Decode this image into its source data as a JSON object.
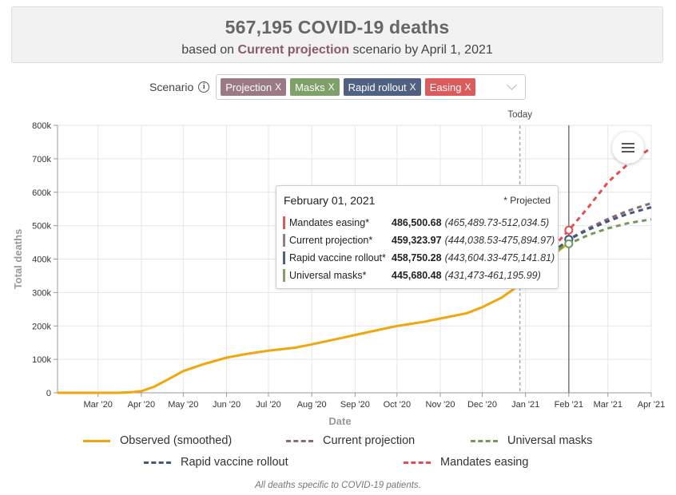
{
  "header": {
    "title": "567,195 COVID-19 deaths",
    "sub_prefix": "based on",
    "sub_highlight": "Current projection",
    "sub_suffix": "scenario by April 1, 2021"
  },
  "scenario": {
    "label": "Scenario",
    "info_glyph": "i",
    "chips": [
      {
        "label": "Projection",
        "class": "proj",
        "color": "#9a7a84"
      },
      {
        "label": "Masks",
        "class": "masks",
        "color": "#7fa068"
      },
      {
        "label": "Rapid rollout",
        "class": "rapid",
        "color": "#4f6082"
      },
      {
        "label": "Easing",
        "class": "easing",
        "color": "#dc5a5a"
      }
    ],
    "chip_close": "X"
  },
  "tooltip": {
    "date": "February 01, 2021",
    "projected_note": "* Projected",
    "rows": [
      {
        "name": "Mandates easing*",
        "value": "486,500.68",
        "ci": "(465,489.73-512,034.5)",
        "color": "#dc5a5a"
      },
      {
        "name": "Current projection*",
        "value": "459,323.97",
        "ci": "(444,038.53-475,894.97)",
        "color": "#9a7a84"
      },
      {
        "name": "Rapid vaccine rollout*",
        "value": "458,750.28",
        "ci": "(443,604.33-475,141.81)",
        "color": "#4f6082"
      },
      {
        "name": "Universal masks*",
        "value": "445,680.48",
        "ci": "(431,473-461,195.99)",
        "color": "#7fa068"
      }
    ]
  },
  "legend": {
    "observed": "Observed (smoothed)",
    "projection": "Current projection",
    "masks": "Universal masks",
    "rapid": "Rapid vaccine rollout",
    "easing": "Mandates easing"
  },
  "footnote": "All deaths specific to COVID-19 patients.",
  "chart_data": {
    "type": "line",
    "xlabel": "Date",
    "ylabel": "Total deaths",
    "x_ticks": [
      "Mar '20",
      "Apr '20",
      "May '20",
      "Jun '20",
      "Jul '20",
      "Aug '20",
      "Sep '20",
      "Oct '20",
      "Nov '20",
      "Dec '20",
      "Jan '21",
      "Feb '21",
      "Mar '21",
      "Apr '21"
    ],
    "y_ticks": [
      "0",
      "100k",
      "200k",
      "300k",
      "400k",
      "500k",
      "600k",
      "700k",
      "800k"
    ],
    "ylim": [
      0,
      800000
    ],
    "xlim": [
      "2020-02-01",
      "2021-04-01"
    ],
    "today_label": "Today",
    "today_date": "2020-12-28",
    "hover_date": "2021-02-01",
    "grid": true,
    "colors": {
      "observed": "#f2a60d",
      "projection": "#8a6a76",
      "masks": "#6f9a5a",
      "rapid": "#46567c",
      "easing": "#e05050"
    },
    "series": [
      {
        "name": "Observed (smoothed)",
        "key": "observed",
        "points": [
          [
            "2020-02-01",
            0
          ],
          [
            "2020-03-15",
            0
          ],
          [
            "2020-03-25",
            2000
          ],
          [
            "2020-04-01",
            5000
          ],
          [
            "2020-04-10",
            18000
          ],
          [
            "2020-04-20",
            40000
          ],
          [
            "2020-05-01",
            65000
          ],
          [
            "2020-05-15",
            85000
          ],
          [
            "2020-06-01",
            105000
          ],
          [
            "2020-06-15",
            116000
          ],
          [
            "2020-07-01",
            126000
          ],
          [
            "2020-07-20",
            135000
          ],
          [
            "2020-08-01",
            145000
          ],
          [
            "2020-08-20",
            162000
          ],
          [
            "2020-09-01",
            173000
          ],
          [
            "2020-09-20",
            190000
          ],
          [
            "2020-10-01",
            200000
          ],
          [
            "2020-10-20",
            212000
          ],
          [
            "2020-11-01",
            222000
          ],
          [
            "2020-11-20",
            238000
          ],
          [
            "2020-12-01",
            256000
          ],
          [
            "2020-12-15",
            285000
          ],
          [
            "2021-01-01",
            335000
          ],
          [
            "2021-01-12",
            375000
          ],
          [
            "2021-01-20",
            410000
          ],
          [
            "2021-02-01",
            449000
          ]
        ]
      },
      {
        "name": "Current projection",
        "key": "projection",
        "points": [
          [
            "2021-01-25",
            435000
          ],
          [
            "2021-02-01",
            459324
          ],
          [
            "2021-02-15",
            492000
          ],
          [
            "2021-03-01",
            520000
          ],
          [
            "2021-03-15",
            544000
          ],
          [
            "2021-04-01",
            567195
          ]
        ]
      },
      {
        "name": "Rapid vaccine rollout",
        "key": "rapid",
        "points": [
          [
            "2021-01-25",
            435000
          ],
          [
            "2021-02-01",
            458750
          ],
          [
            "2021-02-15",
            488000
          ],
          [
            "2021-03-01",
            513000
          ],
          [
            "2021-03-15",
            535000
          ],
          [
            "2021-04-01",
            555000
          ]
        ]
      },
      {
        "name": "Universal masks",
        "key": "masks",
        "points": [
          [
            "2021-01-25",
            430000
          ],
          [
            "2021-02-01",
            445680
          ],
          [
            "2021-02-15",
            472000
          ],
          [
            "2021-03-01",
            492000
          ],
          [
            "2021-03-15",
            507000
          ],
          [
            "2021-04-01",
            519000
          ]
        ]
      },
      {
        "name": "Mandates easing",
        "key": "easing",
        "points": [
          [
            "2021-01-25",
            455000
          ],
          [
            "2021-02-01",
            486501
          ],
          [
            "2021-02-15",
            555000
          ],
          [
            "2021-03-01",
            630000
          ],
          [
            "2021-03-15",
            683000
          ],
          [
            "2021-04-01",
            733000
          ]
        ]
      }
    ]
  }
}
